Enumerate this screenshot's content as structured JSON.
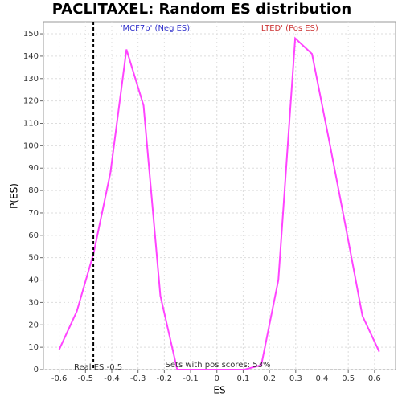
{
  "chart_data": {
    "type": "line",
    "title": "PACLITAXEL: Random ES distribution",
    "xlabel": "ES",
    "ylabel": "P(ES)",
    "x": [
      -0.6,
      -0.533,
      -0.469,
      -0.405,
      -0.344,
      -0.279,
      -0.215,
      -0.151,
      -0.087,
      -0.023,
      0.041,
      0.105,
      0.169,
      0.234,
      0.298,
      0.362,
      0.426,
      0.49,
      0.554,
      0.618
    ],
    "series": [
      {
        "name": "P(ES)",
        "color": "#ff44ff",
        "values": [
          9,
          26,
          52,
          88,
          143,
          118,
          33,
          0,
          0,
          0,
          0,
          0,
          2,
          40,
          148,
          141,
          103,
          64,
          24,
          8
        ]
      }
    ],
    "xlim": [
      -0.66,
      0.68
    ],
    "ylim": [
      0,
      155.4
    ],
    "xticks": [
      -0.6,
      -0.5,
      -0.4,
      -0.3,
      -0.2,
      -0.1,
      0,
      0.1,
      0.2,
      0.3,
      0.4,
      0.5,
      0.6
    ],
    "yticks": [
      0,
      10,
      20,
      30,
      40,
      50,
      60,
      70,
      80,
      90,
      100,
      110,
      120,
      130,
      140,
      150
    ],
    "grid": true,
    "real_es": {
      "x": -0.47,
      "label": "Real ES -0.5"
    },
    "neg_label": "'MCF7p' (Neg ES)",
    "neg_color": "#3333cc",
    "pos_label": "'LTED' (Pos ES)",
    "pos_color": "#cc3333",
    "pos_scores_label": "Sets with pos scores: 53%"
  }
}
